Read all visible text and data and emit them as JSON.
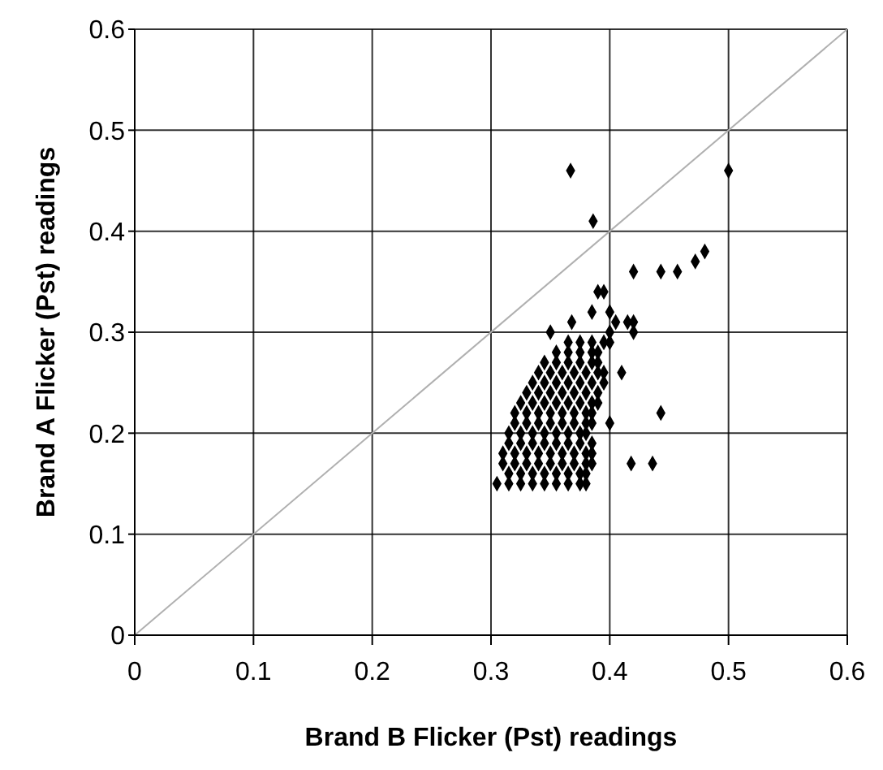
{
  "chart_data": {
    "type": "scatter",
    "xlabel": "Brand B Flicker (Pst) readings",
    "ylabel": "Brand A Flicker (Pst) readings",
    "xlim": [
      0,
      0.6
    ],
    "ylim": [
      0,
      0.6
    ],
    "xticks": [
      0,
      0.1,
      0.2,
      0.3,
      0.4,
      0.5,
      0.6
    ],
    "yticks": [
      0,
      0.1,
      0.2,
      0.3,
      0.4,
      0.5,
      0.6
    ],
    "grid": true,
    "marker": "diamond",
    "series": [
      {
        "type": "line",
        "marker": "none",
        "color": "#b0b0b0",
        "x": [
          0,
          0.6
        ],
        "values": [
          0,
          0.6
        ]
      },
      {
        "color": "#000000",
        "x": [
          0.305,
          0.315,
          0.325,
          0.335,
          0.345,
          0.355,
          0.365,
          0.375,
          0.38,
          0.315,
          0.325,
          0.335,
          0.345,
          0.355,
          0.365,
          0.375,
          0.38,
          0.31,
          0.32,
          0.33,
          0.34,
          0.35,
          0.36,
          0.37,
          0.38,
          0.385,
          0.31,
          0.32,
          0.33,
          0.34,
          0.35,
          0.36,
          0.37,
          0.38,
          0.385,
          0.315,
          0.325,
          0.335,
          0.345,
          0.355,
          0.365,
          0.375,
          0.385,
          0.315,
          0.325,
          0.335,
          0.345,
          0.355,
          0.365,
          0.375,
          0.38,
          0.32,
          0.33,
          0.34,
          0.35,
          0.36,
          0.37,
          0.38,
          0.385,
          0.32,
          0.33,
          0.34,
          0.35,
          0.36,
          0.37,
          0.38,
          0.385,
          0.325,
          0.335,
          0.345,
          0.355,
          0.365,
          0.375,
          0.385,
          0.39,
          0.33,
          0.34,
          0.35,
          0.36,
          0.37,
          0.38,
          0.39,
          0.335,
          0.345,
          0.355,
          0.365,
          0.375,
          0.385,
          0.395,
          0.34,
          0.35,
          0.36,
          0.37,
          0.38,
          0.39,
          0.395,
          0.345,
          0.355,
          0.365,
          0.375,
          0.385,
          0.39,
          0.355,
          0.365,
          0.375,
          0.385,
          0.39,
          0.365,
          0.375,
          0.385,
          0.395,
          0.4,
          0.35,
          0.4,
          0.42,
          0.368,
          0.405,
          0.415,
          0.42,
          0.385,
          0.4,
          0.39,
          0.395,
          0.367,
          0.386,
          0.5,
          0.42,
          0.443,
          0.457,
          0.472,
          0.48,
          0.443,
          0.418,
          0.436,
          0.4,
          0.41
        ],
        "values": [
          0.15,
          0.15,
          0.15,
          0.15,
          0.15,
          0.15,
          0.15,
          0.15,
          0.15,
          0.16,
          0.16,
          0.16,
          0.16,
          0.16,
          0.16,
          0.16,
          0.16,
          0.17,
          0.17,
          0.17,
          0.17,
          0.17,
          0.17,
          0.17,
          0.17,
          0.17,
          0.18,
          0.18,
          0.18,
          0.18,
          0.18,
          0.18,
          0.18,
          0.18,
          0.18,
          0.19,
          0.19,
          0.19,
          0.19,
          0.19,
          0.19,
          0.19,
          0.19,
          0.2,
          0.2,
          0.2,
          0.2,
          0.2,
          0.2,
          0.2,
          0.2,
          0.21,
          0.21,
          0.21,
          0.21,
          0.21,
          0.21,
          0.21,
          0.21,
          0.22,
          0.22,
          0.22,
          0.22,
          0.22,
          0.22,
          0.22,
          0.22,
          0.23,
          0.23,
          0.23,
          0.23,
          0.23,
          0.23,
          0.23,
          0.23,
          0.24,
          0.24,
          0.24,
          0.24,
          0.24,
          0.24,
          0.24,
          0.25,
          0.25,
          0.25,
          0.25,
          0.25,
          0.25,
          0.25,
          0.26,
          0.26,
          0.26,
          0.26,
          0.26,
          0.26,
          0.26,
          0.27,
          0.27,
          0.27,
          0.27,
          0.27,
          0.27,
          0.28,
          0.28,
          0.28,
          0.28,
          0.28,
          0.29,
          0.29,
          0.29,
          0.29,
          0.29,
          0.3,
          0.3,
          0.3,
          0.31,
          0.31,
          0.31,
          0.31,
          0.32,
          0.32,
          0.34,
          0.34,
          0.46,
          0.41,
          0.46,
          0.36,
          0.36,
          0.36,
          0.37,
          0.38,
          0.22,
          0.17,
          0.17,
          0.21,
          0.26
        ]
      }
    ]
  }
}
